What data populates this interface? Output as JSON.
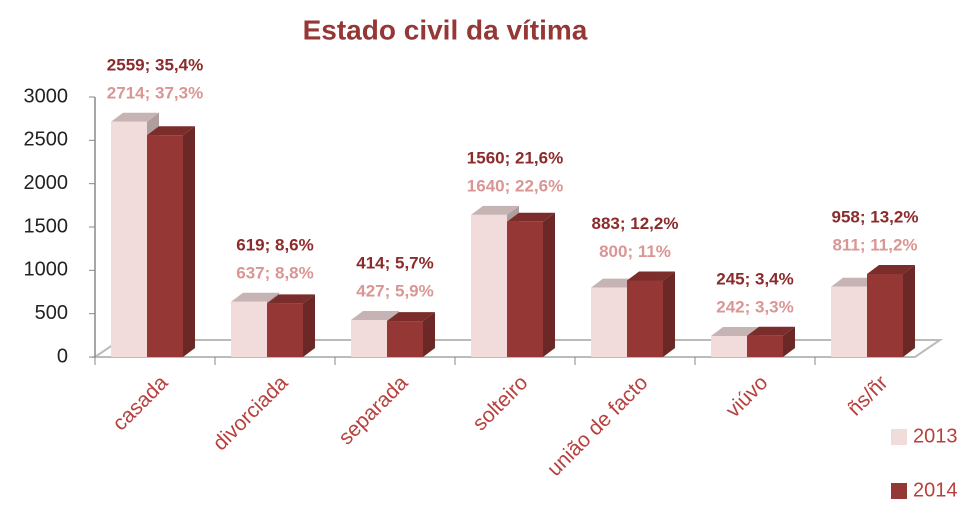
{
  "chart_data": {
    "type": "bar3d",
    "title": "Estado civil da vítima",
    "categories": [
      "casada",
      "divorciada",
      "separada",
      "solteiro",
      "união de facto",
      "viúvo",
      "ñs/ñr"
    ],
    "series": [
      {
        "name": "2013",
        "color": "#f2dcdb",
        "label_color": "#d99694",
        "values": [
          2714,
          637,
          427,
          1640,
          800,
          242,
          811
        ],
        "value_labels": [
          "2714; 37,3%",
          "637; 8,8%",
          "427; 5,9%",
          "1640; 22,6%",
          "800; 11%",
          "242; 3,3%",
          "811; 11,2%"
        ]
      },
      {
        "name": "2014",
        "color": "#953735",
        "label_color": "#8c2b2b",
        "values": [
          2559,
          619,
          414,
          1560,
          883,
          245,
          958
        ],
        "value_labels": [
          "2559; 35,4%",
          "619; 8,6%",
          "414; 5,7%",
          "1560; 21,6%",
          "883; 12,2%",
          "245; 3,4%",
          "958; 13,2%"
        ]
      }
    ],
    "ylim": [
      0,
      3000
    ],
    "yticks": [
      0,
      500,
      1000,
      1500,
      2000,
      2500,
      3000
    ],
    "legend": "right"
  }
}
